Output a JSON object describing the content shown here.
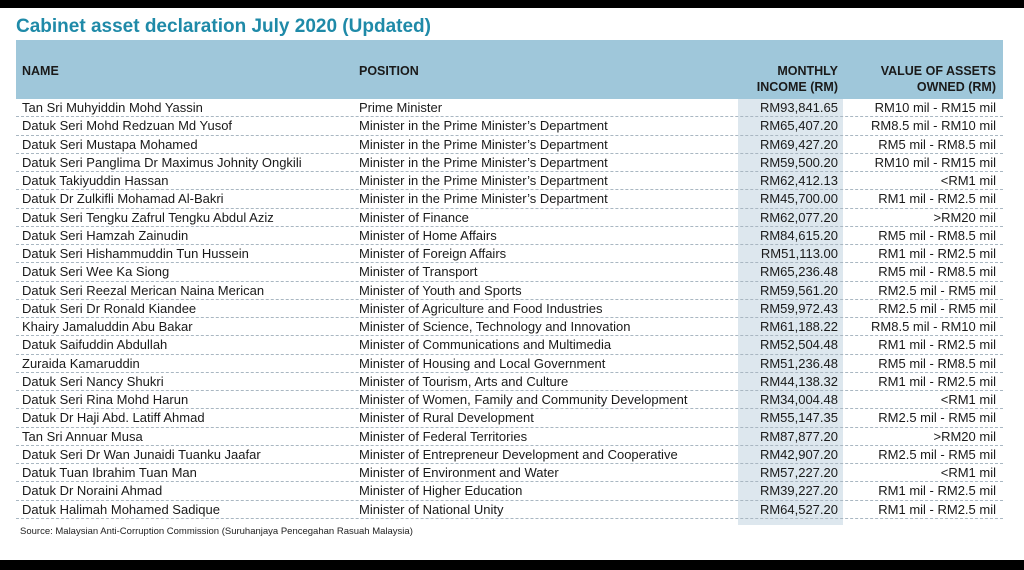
{
  "title": "Cabinet asset declaration July 2020 (Updated)",
  "headers": {
    "name": "NAME",
    "position": "POSITION",
    "income": "MONTHLY\nINCOME (RM)",
    "assets": "VALUE OF ASSETS\nOWNED (RM)"
  },
  "rows": [
    {
      "name": "Tan Sri Muhyiddin Mohd Yassin",
      "position": "Prime Minister",
      "income": "RM93,841.65",
      "assets": "RM10 mil - RM15 mil"
    },
    {
      "name": "Datuk Seri Mohd Redzuan Md Yusof",
      "position": "Minister in the Prime Minister’s Department",
      "income": "RM65,407.20",
      "assets": "RM8.5 mil - RM10 mil"
    },
    {
      "name": "Datuk Seri Mustapa Mohamed",
      "position": "Minister in the Prime Minister’s Department",
      "income": "RM69,427.20",
      "assets": "RM5 mil - RM8.5 mil"
    },
    {
      "name": "Datuk Seri Panglima Dr Maximus Johnity Ongkili",
      "position": "Minister in the Prime Minister’s Department",
      "income": "RM59,500.20",
      "assets": "RM10 mil - RM15 mil"
    },
    {
      "name": "Datuk Takiyuddin Hassan",
      "position": "Minister in the Prime Minister’s Department",
      "income": "RM62,412.13",
      "assets": "<RM1 mil"
    },
    {
      "name": "Datuk Dr Zulkifli Mohamad Al-Bakri",
      "position": "Minister in the Prime Minister’s Department",
      "income": "RM45,700.00",
      "assets": "RM1 mil - RM2.5 mil"
    },
    {
      "name": "Datuk Seri Tengku Zafrul Tengku Abdul Aziz",
      "position": "Minister of Finance",
      "income": "RM62,077.20",
      "assets": ">RM20 mil"
    },
    {
      "name": "Datuk Seri Hamzah Zainudin",
      "position": "Minister of Home Affairs",
      "income": "RM84,615.20",
      "assets": "RM5 mil - RM8.5 mil"
    },
    {
      "name": "Datuk Seri Hishammuddin Tun Hussein",
      "position": "Minister of Foreign Affairs",
      "income": "RM51,113.00",
      "assets": "RM1 mil - RM2.5 mil"
    },
    {
      "name": "Datuk Seri Wee Ka Siong",
      "position": "Minister of Transport",
      "income": "RM65,236.48",
      "assets": "RM5 mil - RM8.5 mil"
    },
    {
      "name": "Datuk Seri Reezal Merican Naina Merican",
      "position": "Minister of Youth and Sports",
      "income": "RM59,561.20",
      "assets": "RM2.5 mil - RM5 mil"
    },
    {
      "name": "Datuk Seri Dr Ronald Kiandee",
      "position": "Minister of Agriculture and Food Industries",
      "income": "RM59,972.43",
      "assets": "RM2.5 mil - RM5 mil"
    },
    {
      "name": "Khairy Jamaluddin Abu Bakar",
      "position": "Minister of Science, Technology and Innovation",
      "income": "RM61,188.22",
      "assets": "RM8.5 mil - RM10 mil"
    },
    {
      "name": "Datuk Saifuddin Abdullah",
      "position": "Minister of Communications and Multimedia",
      "income": "RM52,504.48",
      "assets": "RM1 mil - RM2.5 mil"
    },
    {
      "name": "Zuraida Kamaruddin",
      "position": "Minister of Housing and Local Government",
      "income": "RM51,236.48",
      "assets": "RM5 mil - RM8.5 mil"
    },
    {
      "name": "Datuk Seri Nancy Shukri",
      "position": "Minister of Tourism, Arts and Culture",
      "income": "RM44,138.32",
      "assets": "RM1 mil - RM2.5 mil"
    },
    {
      "name": "Datuk Seri Rina Mohd Harun",
      "position": "Minister of Women, Family and Community Development",
      "income": "RM34,004.48",
      "assets": "<RM1 mil"
    },
    {
      "name": "Datuk Dr Haji Abd. Latiff Ahmad",
      "position": "Minister of Rural Development",
      "income": "RM55,147.35",
      "assets": "RM2.5 mil - RM5 mil"
    },
    {
      "name": "Tan Sri Annuar Musa",
      "position": "Minister of Federal Territories",
      "income": "RM87,877.20",
      "assets": ">RM20 mil"
    },
    {
      "name": "Datuk Seri Dr Wan Junaidi Tuanku Jaafar",
      "position": "Minister of Entrepreneur Development and Cooperative",
      "income": "RM42,907.20",
      "assets": "RM2.5 mil - RM5 mil"
    },
    {
      "name": "Datuk Tuan Ibrahim Tuan Man",
      "position": "Minister of Environment and Water",
      "income": "RM57,227.20",
      "assets": "<RM1 mil"
    },
    {
      "name": "Datuk Dr Noraini Ahmad",
      "position": "Minister of Higher Education",
      "income": "RM39,227.20",
      "assets": "RM1 mil - RM2.5 mil"
    },
    {
      "name": "Datuk Halimah Mohamed Sadique",
      "position": "Minister of National Unity",
      "income": "RM64,527.20",
      "assets": "RM1 mil - RM2.5 mil"
    }
  ],
  "source": "Source: Malaysian Anti-Corruption Commission (Suruhanjaya Pencegahan Rasuah Malaysia)",
  "colors": {
    "title": "#1f8aa8",
    "header_bg": "#9fc7da",
    "income_col_bg": "#dde7ee"
  }
}
